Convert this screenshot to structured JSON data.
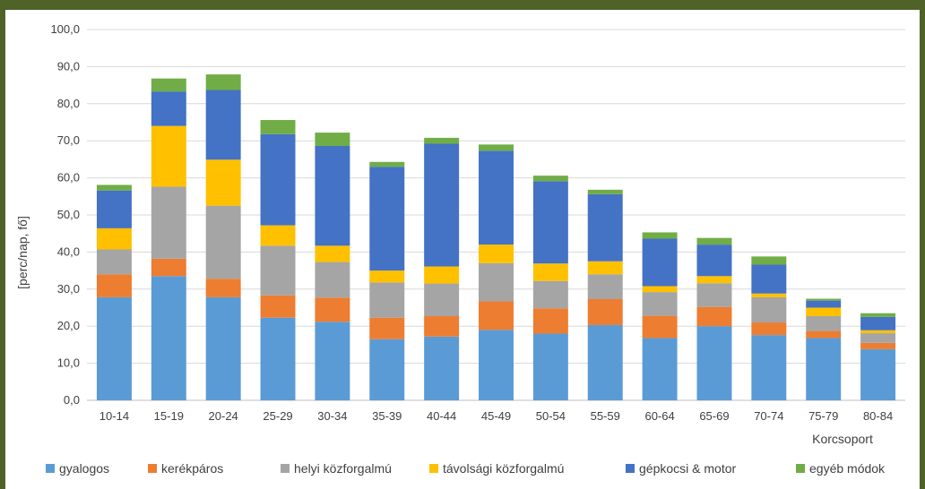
{
  "chart_data": {
    "type": "bar",
    "stacked": true,
    "ylabel": "[perc/nap, fő]",
    "xlabel": "Korcsoport",
    "ylim": [
      0,
      100
    ],
    "yticks": [
      "0,0",
      "10,0",
      "20,0",
      "30,0",
      "40,0",
      "50,0",
      "60,0",
      "70,0",
      "80,0",
      "90,0",
      "100,0"
    ],
    "grid": true,
    "legend_position": "bottom",
    "categories": [
      "10-14",
      "15-19",
      "20-24",
      "25-29",
      "30-34",
      "35-39",
      "40-44",
      "45-49",
      "50-54",
      "55-59",
      "60-64",
      "65-69",
      "70-74",
      "75-79",
      "80-84"
    ],
    "series": [
      {
        "name": "gyalogos",
        "color": "#5b9bd5",
        "values": [
          27.8,
          33.5,
          27.8,
          22.3,
          21.2,
          16.5,
          17.2,
          19.0,
          18.0,
          20.3,
          16.8,
          20.0,
          17.6,
          16.8,
          13.8
        ]
      },
      {
        "name": "kerékpáros",
        "color": "#ed7d31",
        "values": [
          6.2,
          4.7,
          5.0,
          6.0,
          6.5,
          5.8,
          5.5,
          7.7,
          6.8,
          7.0,
          6.0,
          5.2,
          3.4,
          1.9,
          1.7
        ]
      },
      {
        "name": "helyi közforgalmú",
        "color": "#a5a5a5",
        "values": [
          6.7,
          19.4,
          19.7,
          13.4,
          9.6,
          9.5,
          8.8,
          10.3,
          7.4,
          6.7,
          6.4,
          6.4,
          6.8,
          4.0,
          2.6
        ]
      },
      {
        "name": "távolsági közforgalmú",
        "color": "#ffc000",
        "values": [
          5.7,
          16.4,
          12.4,
          5.5,
          4.4,
          3.2,
          4.6,
          5.0,
          4.7,
          3.5,
          1.6,
          1.9,
          1.0,
          2.3,
          0.8
        ]
      },
      {
        "name": "gépkocsi & motor",
        "color": "#4472c4",
        "values": [
          10.2,
          9.3,
          18.8,
          24.6,
          26.9,
          28.0,
          33.1,
          25.3,
          22.2,
          18.1,
          12.8,
          8.5,
          7.8,
          1.9,
          3.6
        ]
      },
      {
        "name": "egyéb módok",
        "color": "#70ad47",
        "values": [
          1.5,
          3.5,
          4.2,
          3.8,
          3.6,
          1.3,
          1.6,
          1.7,
          1.5,
          1.2,
          1.7,
          1.8,
          2.2,
          0.5,
          1.0
        ]
      }
    ]
  }
}
